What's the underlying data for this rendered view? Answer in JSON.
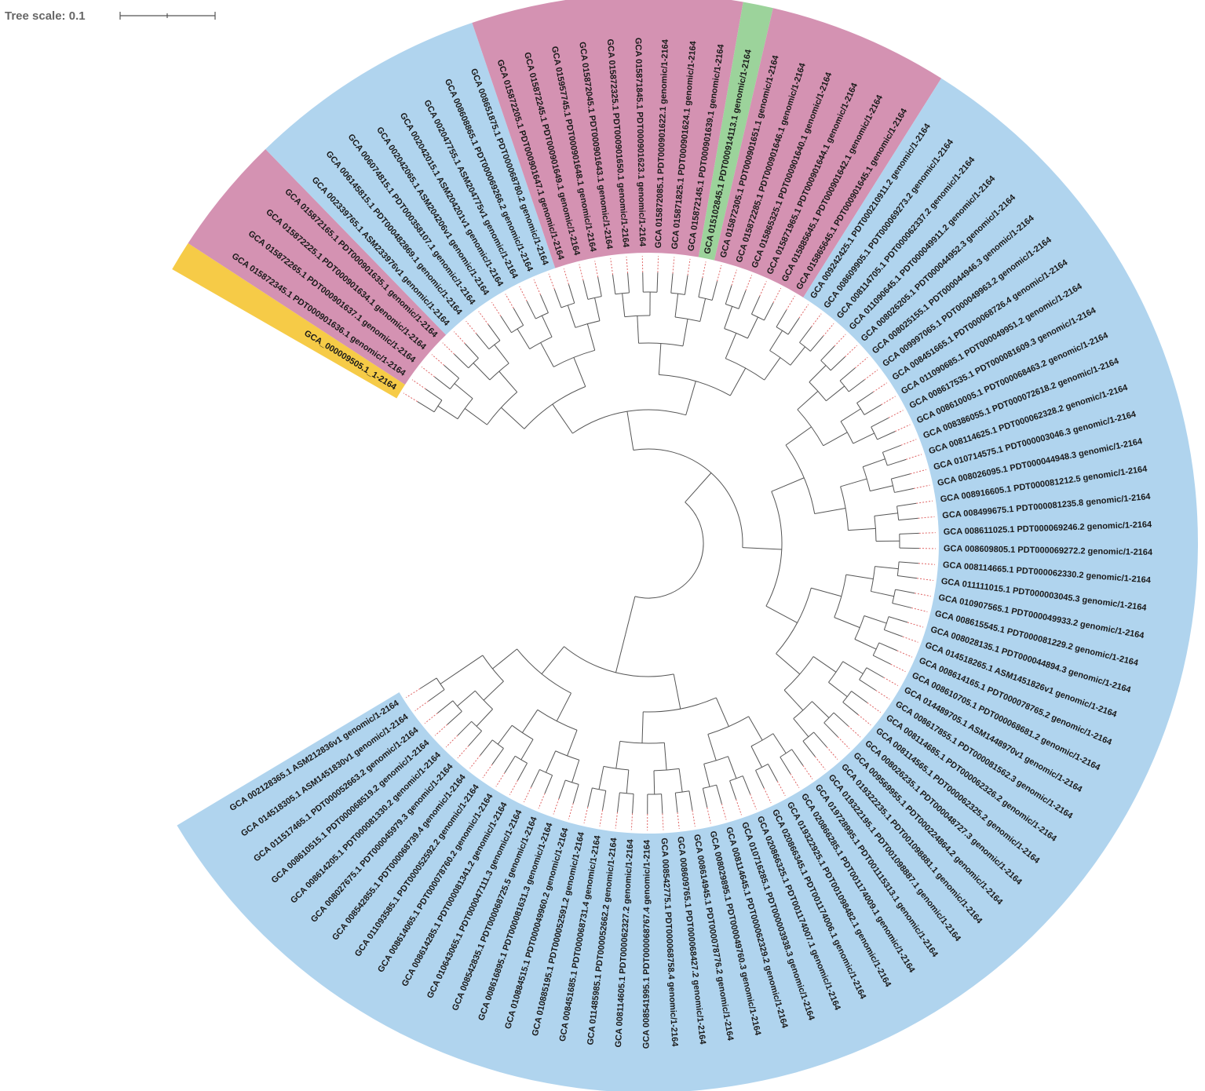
{
  "tree_scale": {
    "label": "Tree scale: 0.1"
  },
  "colors": {
    "blue": "#b0d4ee",
    "pink": "#d492b2",
    "green": "#9cd39b",
    "yellow": "#f6cb47"
  },
  "leaves": [
    {
      "label": "GCA_000009505.1_1-2164",
      "color": "yellow"
    },
    {
      "label": "GCA 015872345.1 PDT000901636.1 genomic/1-2164",
      "color": "pink"
    },
    {
      "label": "GCA 015872265.1 PDT000901637.1 genomic/1-2164",
      "color": "pink"
    },
    {
      "label": "GCA 015872225.1 PDT000901634.1 genomic/1-2164",
      "color": "pink"
    },
    {
      "label": "GCA 015872165.1 PDT000901635.1 genomic/1-2164",
      "color": "pink"
    },
    {
      "label": "GCA 002339765.1 ASM233976v1 genomic/1-2164",
      "color": "blue"
    },
    {
      "label": "GCA 006145815.1 PDT000482869.1 genomic/1-2164",
      "color": "blue"
    },
    {
      "label": "GCA 006074815.1 PDT000358107.1 genomic/1-2164",
      "color": "blue"
    },
    {
      "label": "GCA 002042065.1 ASM204206v1 genomic/1-2164",
      "color": "blue"
    },
    {
      "label": "GCA 002042015.1 ASM204201v1 genomic/1-2164",
      "color": "blue"
    },
    {
      "label": "GCA 002047755.1 ASM204775v1 genomic/1-2164",
      "color": "blue"
    },
    {
      "label": "GCA 008608865.1 PDT000069266.2 genomic/1-2164",
      "color": "blue"
    },
    {
      "label": "GCA 008651875.1 PDT000068780.2 genomic/1-2164",
      "color": "blue"
    },
    {
      "label": "GCA 015872205.1 PDT000901647.1 genomic/1-2164",
      "color": "pink"
    },
    {
      "label": "GCA 015872245.1 PDT000901649.1 genomic/1-2164",
      "color": "pink"
    },
    {
      "label": "GCA 015957745.1 PDT000901648.1 genomic/1-2164",
      "color": "pink"
    },
    {
      "label": "GCA 015872045.1 PDT000901643.1 genomic/1-2164",
      "color": "pink"
    },
    {
      "label": "GCA 015872325.1 PDT000901650.1 genomic/1-2164",
      "color": "pink"
    },
    {
      "label": "GCA 015871845.1 PDT000901623.1 genomic/1-2164",
      "color": "pink"
    },
    {
      "label": "GCA 015872085.1 PDT000901622.1 genomic/1-2164",
      "color": "pink"
    },
    {
      "label": "GCA 015871825.1 PDT000901624.1 genomic/1-2164",
      "color": "pink"
    },
    {
      "label": "GCA 015872145.1 PDT000901639.1 genomic/1-2164",
      "color": "pink"
    },
    {
      "label": "GCA 015102845.1 PDT000914113.1 genomic/1-2164",
      "color": "green"
    },
    {
      "label": "GCA 015872305.1 PDT000901651.1 genomic/1-2164",
      "color": "pink"
    },
    {
      "label": "GCA 015872285.1 PDT000901646.1 genomic/1-2164",
      "color": "pink"
    },
    {
      "label": "GCA 015865325.1 PDT000901640.1 genomic/1-2164",
      "color": "pink"
    },
    {
      "label": "GCA 015871965.1 PDT000901644.1 genomic/1-2164",
      "color": "pink"
    },
    {
      "label": "GCA 015885645.1 PDT000901642.1 genomic/1-2164",
      "color": "pink"
    },
    {
      "label": "GCA 015865645.1 PDT000901645.1 genomic/1-2164",
      "color": "pink"
    },
    {
      "label": "GCA 009242425.1 PDT000210911.2 genomic/1-2164",
      "color": "blue"
    },
    {
      "label": "GCA 008609905.1 PDT000069273.2 genomic/1-2164",
      "color": "blue"
    },
    {
      "label": "GCA 008114705.1 PDT000062337.2 genomic/1-2164",
      "color": "blue"
    },
    {
      "label": "GCA 011090645.1 PDT000049911.2 genomic/1-2164",
      "color": "blue"
    },
    {
      "label": "GCA 008026205.1 PDT000044952.3 genomic/1-2164",
      "color": "blue"
    },
    {
      "label": "GCA 008025155.1 PDT000044946.3 genomic/1-2164",
      "color": "blue"
    },
    {
      "label": "GCA 009997065.1 PDT000049963.2 genomic/1-2164",
      "color": "blue"
    },
    {
      "label": "GCA 008451665.1 PDT000068726.4 genomic/1-2164",
      "color": "blue"
    },
    {
      "label": "GCA 011090685.1 PDT000049951.2 genomic/1-2164",
      "color": "blue"
    },
    {
      "label": "GCA 008617535.1 PDT000081609.3 genomic/1-2164",
      "color": "blue"
    },
    {
      "label": "GCA 008610005.1 PDT000068463.2 genomic/1-2164",
      "color": "blue"
    },
    {
      "label": "GCA 008386055.1 PDT000072618.2 genomic/1-2164",
      "color": "blue"
    },
    {
      "label": "GCA 008114625.1 PDT000062328.2 genomic/1-2164",
      "color": "blue"
    },
    {
      "label": "GCA 010714575.1 PDT000003046.3 genomic/1-2164",
      "color": "blue"
    },
    {
      "label": "GCA 008026095.1 PDT000044948.3 genomic/1-2164",
      "color": "blue"
    },
    {
      "label": "GCA 008916605.1 PDT000081212.5 genomic/1-2164",
      "color": "blue"
    },
    {
      "label": "GCA 008499675.1 PDT000081235.8 genomic/1-2164",
      "color": "blue"
    },
    {
      "label": "GCA 008611025.1 PDT000069246.2 genomic/1-2164",
      "color": "blue"
    },
    {
      "label": "GCA 008609805.1 PDT000069272.2 genomic/1-2164",
      "color": "blue"
    },
    {
      "label": "GCA 008114665.1 PDT000062330.2 genomic/1-2164",
      "color": "blue"
    },
    {
      "label": "GCA 011111015.1 PDT000003045.3 genomic/1-2164",
      "color": "blue"
    },
    {
      "label": "GCA 010907565.1 PDT000049933.2 genomic/1-2164",
      "color": "blue"
    },
    {
      "label": "GCA 008615545.1 PDT000081229.2 genomic/1-2164",
      "color": "blue"
    },
    {
      "label": "GCA 008028135.1 PDT000044894.3 genomic/1-2164",
      "color": "blue"
    },
    {
      "label": "GCA 014518265.1 ASM1451826v1 genomic/1-2164",
      "color": "blue"
    },
    {
      "label": "GCA 008614165.1 PDT000078765.2 genomic/1-2164",
      "color": "blue"
    },
    {
      "label": "GCA 008610705.1 PDT000068681.2 genomic/1-2164",
      "color": "blue"
    },
    {
      "label": "GCA 014489705.1 ASM1448970v1 genomic/1-2164",
      "color": "blue"
    },
    {
      "label": "GCA 008617855.1 PDT000081562.3 genomic/1-2164",
      "color": "blue"
    },
    {
      "label": "GCA 008114685.1 PDT000062326.2 genomic/1-2164",
      "color": "blue"
    },
    {
      "label": "GCA 008114565.1 PDT000062325.2 genomic/1-2164",
      "color": "blue"
    },
    {
      "label": "GCA 008026235.1 PDT000048727.3 genomic/1-2164",
      "color": "blue"
    },
    {
      "label": "GCA 009569955.1 PDT000224864.2 genomic/1-2164",
      "color": "blue"
    },
    {
      "label": "GCA 019322235.1 PDT001098881.1 genomic/1-2164",
      "color": "blue"
    },
    {
      "label": "GCA 019322195.1 PDT001098887.1 genomic/1-2164",
      "color": "blue"
    },
    {
      "label": "GCA 019728995.1 PDT001115313.1 genomic/1-2164",
      "color": "blue"
    },
    {
      "label": "GCA 020866285.1 PDT001174009.1 genomic/1-2164",
      "color": "blue"
    },
    {
      "label": "GCA 019322925.1 PDT001098482.1 genomic/1-2164",
      "color": "blue"
    },
    {
      "label": "GCA 020866345.1 PDT001174006.1 genomic/1-2164",
      "color": "blue"
    },
    {
      "label": "GCA 020866325.1 PDT001174007.1 genomic/1-2164",
      "color": "blue"
    },
    {
      "label": "GCA 010716285.1 PDT000003938.3 genomic/1-2164",
      "color": "blue"
    },
    {
      "label": "GCA 008114645.1 PDT000062329.2 genomic/1-2164",
      "color": "blue"
    },
    {
      "label": "GCA 008029895.1 PDT000049760.3 genomic/1-2164",
      "color": "blue"
    },
    {
      "label": "GCA 008614945.1 PDT000078776.2 genomic/1-2164",
      "color": "blue"
    },
    {
      "label": "GCA 008609765.1 PDT000068427.2 genomic/1-2164",
      "color": "blue"
    },
    {
      "label": "GCA 008542775.1 PDT000068758.4 genomic/1-2164",
      "color": "blue"
    },
    {
      "label": "GCA 008541995.1 PDT000068767.4 genomic/1-2164",
      "color": "blue"
    },
    {
      "label": "GCA 008114605.1 PDT000062327.2 genomic/1-2164",
      "color": "blue"
    },
    {
      "label": "GCA 011485985.1 PDT000052662.2 genomic/1-2164",
      "color": "blue"
    },
    {
      "label": "GCA 008451685.1 PDT000068731.4 genomic/1-2164",
      "color": "blue"
    },
    {
      "label": "GCA 010885195.1 PDT000052591.2 genomic/1-2164",
      "color": "blue"
    },
    {
      "label": "GCA 010884515.1 PDT000049960.2 genomic/1-2164",
      "color": "blue"
    },
    {
      "label": "GCA 008616895.1 PDT000081631.3 genomic/1-2164",
      "color": "blue"
    },
    {
      "label": "GCA 008542835.1 PDT000068725.5 genomic/1-2164",
      "color": "blue"
    },
    {
      "label": "GCA 010643065.1 PDT000047111.3 genomic/1-2164",
      "color": "blue"
    },
    {
      "label": "GCA 008614285.1 PDT000081341.2 genomic/1-2164",
      "color": "blue"
    },
    {
      "label": "GCA 008614065.1 PDT000078760.2 genomic/1-2164",
      "color": "blue"
    },
    {
      "label": "GCA 011093585.1 PDT000052592.2 genomic/1-2164",
      "color": "blue"
    },
    {
      "label": "GCA 008542855.1 PDT000068739.4 genomic/1-2164",
      "color": "blue"
    },
    {
      "label": "GCA 008027675.1 PDT000045979.3 genomic/1-2164",
      "color": "blue"
    },
    {
      "label": "GCA 008614205.1 PDT000081330.2 genomic/1-2164",
      "color": "blue"
    },
    {
      "label": "GCA 008610515.1 PDT000068519.2 genomic/1-2164",
      "color": "blue"
    },
    {
      "label": "GCA 011517465.1 PDT000052663.2 genomic/1-2164",
      "color": "blue"
    },
    {
      "label": "GCA 014518305.1 ASM1451830v1 genomic/1-2164",
      "color": "blue"
    },
    {
      "label": "GCA 002128365.1 ASM212836v1 genomic/1-2164",
      "color": "blue"
    }
  ]
}
